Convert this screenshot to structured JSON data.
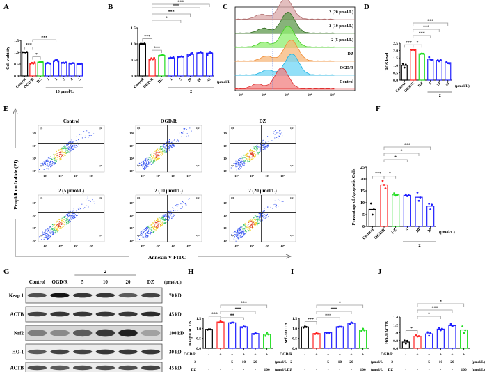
{
  "figure": {
    "panel_labels": [
      "A",
      "B",
      "C",
      "D",
      "E",
      "F",
      "G",
      "H",
      "I",
      "J"
    ]
  },
  "chart_data": [
    {
      "id": "A",
      "type": "bar",
      "ylabel": "Cell viability",
      "ylim": [
        0,
        1.5
      ],
      "yticks": [
        "0.0",
        "0.5",
        "1.0",
        "1.5"
      ],
      "categories": [
        "Control",
        "OGD/R",
        "DZ",
        "1",
        "2",
        "3",
        "4",
        "5"
      ],
      "values": [
        1.0,
        0.53,
        0.58,
        0.53,
        0.64,
        0.55,
        0.53,
        0.5
      ],
      "points": [
        [
          1.0,
          1.0,
          0.99,
          1.01
        ],
        [
          0.5,
          0.55,
          0.52,
          0.57
        ],
        [
          0.57,
          0.58,
          0.6,
          0.59
        ],
        [
          0.53,
          0.55,
          0.54,
          0.52
        ],
        [
          0.62,
          0.66,
          0.68,
          0.61
        ],
        [
          0.55,
          0.56,
          0.54,
          0.57
        ],
        [
          0.53,
          0.52,
          0.54,
          0.54
        ],
        [
          0.5,
          0.51,
          0.5,
          0.52
        ]
      ],
      "colors": [
        "#000000",
        "#ff2020",
        "#22dd22",
        "#2020ff",
        "#2020ff",
        "#2020ff",
        "#2020ff",
        "#2020ff"
      ],
      "group_label": "10 μmol/L",
      "group_start": 3,
      "group_end": 7,
      "unit_label": "",
      "significance": [
        {
          "from": 0,
          "to": 1,
          "label": "***"
        },
        {
          "from": 1,
          "to": 2,
          "label": "*"
        },
        {
          "from": 1,
          "to": 4,
          "label": "***"
        }
      ]
    },
    {
      "id": "B",
      "type": "bar",
      "ylabel": "",
      "ylim": [
        0,
        1.5
      ],
      "yticks": [
        "0.0",
        "0.5",
        "1.0",
        "1.5"
      ],
      "categories": [
        "Control",
        "OGD/R",
        "DZ",
        "1",
        "5",
        "10",
        "20",
        "50"
      ],
      "values": [
        1.0,
        0.53,
        0.64,
        0.56,
        0.6,
        0.67,
        0.72,
        0.71
      ],
      "points": [
        [
          1.0,
          1.0,
          0.99,
          1.01
        ],
        [
          0.51,
          0.55,
          0.52,
          0.56
        ],
        [
          0.63,
          0.64,
          0.65,
          0.64
        ],
        [
          0.55,
          0.57,
          0.56,
          0.58
        ],
        [
          0.59,
          0.6,
          0.61,
          0.6
        ],
        [
          0.62,
          0.65,
          0.7,
          0.72
        ],
        [
          0.7,
          0.73,
          0.75,
          0.72
        ],
        [
          0.65,
          0.7,
          0.75,
          0.72
        ]
      ],
      "colors": [
        "#000000",
        "#ff2020",
        "#22dd22",
        "#2020ff",
        "#2020ff",
        "#2020ff",
        "#2020ff",
        "#2020ff"
      ],
      "group_label": "2",
      "group_start": 3,
      "group_end": 7,
      "unit_label": "(μmol/L)",
      "significance": [
        {
          "from": 0,
          "to": 1,
          "label": "***"
        },
        {
          "from": 1,
          "to": 2,
          "label": "***"
        },
        {
          "from": 1,
          "to": 4,
          "label": "*"
        },
        {
          "from": 1,
          "to": 5,
          "label": "***"
        },
        {
          "from": 1,
          "to": 6,
          "label": "***"
        },
        {
          "from": 1,
          "to": 7,
          "label": "***"
        }
      ]
    },
    {
      "id": "C",
      "type": "area",
      "title": "",
      "xticks": [
        "10³",
        "10⁴",
        "10⁵",
        "10⁶",
        "10⁷"
      ],
      "series": [
        {
          "name": "2 (20 μmol/L)",
          "fill": "#d9a8a8",
          "stroke": "#b07070",
          "peak": 0.55
        },
        {
          "name": "2 (10 μmol/L)",
          "fill": "#5f9a4e",
          "stroke": "#2f6a1e",
          "peak": 0.58
        },
        {
          "name": "2 (5 μmol/L)",
          "fill": "#8fef6f",
          "stroke": "#44cc22",
          "peak": 0.58
        },
        {
          "name": "DZ",
          "fill": "#f7b77a",
          "stroke": "#f08a30",
          "peak": 0.62
        },
        {
          "name": "OGD/R",
          "fill": "#6fd6f5",
          "stroke": "#1ab0e0",
          "peak": 0.63
        },
        {
          "name": "Control",
          "fill": "#f28080",
          "stroke": "#e03030",
          "peak": 0.5
        }
      ]
    },
    {
      "id": "D",
      "type": "bar",
      "ylabel": "ROS level",
      "ylim": [
        0,
        2.5
      ],
      "yticks": [
        "0.0",
        "0.5",
        "1.0",
        "1.5",
        "2.0",
        "2.5"
      ],
      "categories": [
        "Control",
        "OGD/R",
        "DZ",
        "5",
        "10",
        "20"
      ],
      "values": [
        1.0,
        2.05,
        1.78,
        1.43,
        1.33,
        1.18
      ],
      "points": [
        [
          1.1,
          0.85,
          1.05
        ],
        [
          2.05,
          2.06,
          2.04
        ],
        [
          1.77,
          1.8,
          1.78
        ],
        [
          1.55,
          1.4,
          1.38
        ],
        [
          1.35,
          1.28,
          1.38
        ],
        [
          1.25,
          1.15,
          1.12
        ]
      ],
      "colors": [
        "#000000",
        "#ff2020",
        "#22dd22",
        "#2020ff",
        "#2020ff",
        "#2020ff"
      ],
      "group_label": "2",
      "group_start": 3,
      "group_end": 5,
      "unit_label": "(μmol/L)",
      "significance": [
        {
          "from": 0,
          "to": 1,
          "label": "***"
        },
        {
          "from": 1,
          "to": 2,
          "label": "*"
        },
        {
          "from": 1,
          "to": 3,
          "label": "***"
        },
        {
          "from": 1,
          "to": 4,
          "label": "***"
        },
        {
          "from": 1,
          "to": 5,
          "label": "***"
        }
      ]
    },
    {
      "id": "F",
      "type": "bar",
      "ylabel": "Percentage of Apoptotic Cells",
      "ylim": [
        0,
        25
      ],
      "yticks": [
        "0",
        "5",
        "10",
        "15",
        "20",
        "25"
      ],
      "categories": [
        "Control",
        "OGD/R",
        "DZ",
        "5",
        "10",
        "20"
      ],
      "values": [
        7.2,
        17.5,
        13.3,
        13.1,
        12.3,
        8.6
      ],
      "points": [
        [
          9.7,
          5,
          7.2
        ],
        [
          19.2,
          17.5,
          16
        ],
        [
          14,
          13,
          13.2
        ],
        [
          13.5,
          12.8,
          13.2
        ],
        [
          14.3,
          10.8,
          12.2
        ],
        [
          9.6,
          7.2,
          9.2
        ]
      ],
      "colors": [
        "#000000",
        "#ff2020",
        "#22dd22",
        "#2020ff",
        "#2020ff",
        "#2020ff"
      ],
      "group_label": "2",
      "group_start": 3,
      "group_end": 5,
      "unit_label": "(μmol/L)",
      "significance": [
        {
          "from": 0,
          "to": 1,
          "label": "***"
        },
        {
          "from": 1,
          "to": 2,
          "label": "*"
        },
        {
          "from": 1,
          "to": 3,
          "label": "*"
        },
        {
          "from": 1,
          "to": 4,
          "label": "*"
        },
        {
          "from": 1,
          "to": 5,
          "label": "***"
        }
      ]
    },
    {
      "id": "H",
      "type": "bar",
      "ylabel": "Keap1/ACTB",
      "ylim": [
        0,
        1.5
      ],
      "yticks": [
        "0.0",
        "0.5",
        "1.0",
        "1.5"
      ],
      "categories": [
        "",
        "",
        "",
        "",
        "",
        ""
      ],
      "values": [
        0.95,
        1.32,
        1.28,
        1.08,
        0.74,
        0.7
      ],
      "points": [
        [
          0.93,
          0.96,
          0.95
        ],
        [
          1.3,
          1.36,
          1.31
        ],
        [
          1.27,
          1.3,
          1.29
        ],
        [
          1.05,
          1.1,
          1.08
        ],
        [
          0.72,
          0.76,
          0.74
        ],
        [
          0.62,
          0.78,
          0.7
        ]
      ],
      "colors": [
        "#000000",
        "#ff2020",
        "#2020ff",
        "#2020ff",
        "#2020ff",
        "#22dd22"
      ],
      "table_rows": [
        {
          "label": "OGD/R",
          "cells": [
            "-",
            "+",
            "+",
            "+",
            "+",
            "+"
          ],
          "unit": ""
        },
        {
          "label": "2",
          "cells": [
            "-",
            "-",
            "5",
            "10",
            "20",
            "-"
          ],
          "unit": "(μmol/L)"
        },
        {
          "label": "DZ",
          "cells": [
            "-",
            "-",
            "-",
            "-",
            "-",
            "100"
          ],
          "unit": "(μmol/L)"
        }
      ],
      "significance": [
        {
          "from": 0,
          "to": 1,
          "label": "***"
        },
        {
          "from": 1,
          "to": 3,
          "label": "**"
        },
        {
          "from": 1,
          "to": 4,
          "label": "***"
        },
        {
          "from": 1,
          "to": 5,
          "label": "***"
        }
      ]
    },
    {
      "id": "I",
      "type": "bar",
      "ylabel": "Nrf2/ACTB",
      "ylim": [
        0,
        1.5
      ],
      "yticks": [
        "0.0",
        "0.5",
        "1.0",
        "1.5"
      ],
      "categories": [
        "",
        "",
        "",
        "",
        "",
        ""
      ],
      "values": [
        1.07,
        0.74,
        0.78,
        1.08,
        1.26,
        0.91
      ],
      "points": [
        [
          1.04,
          1.1,
          1.07
        ],
        [
          0.72,
          0.77,
          0.73
        ],
        [
          0.78,
          0.79,
          0.77
        ],
        [
          1.07,
          1.09,
          1.08
        ],
        [
          1.2,
          1.3,
          1.27
        ],
        [
          0.85,
          0.98,
          0.9
        ]
      ],
      "colors": [
        "#000000",
        "#ff2020",
        "#2020ff",
        "#2020ff",
        "#2020ff",
        "#22dd22"
      ],
      "table_rows": [
        {
          "label": "OGD/R",
          "cells": [
            "-",
            "+",
            "+",
            "+",
            "+",
            "+"
          ],
          "unit": ""
        },
        {
          "label": "2",
          "cells": [
            "-",
            "-",
            "5",
            "10",
            "20",
            "-"
          ],
          "unit": "(μmol/L)"
        },
        {
          "label": "DZ",
          "cells": [
            "-",
            "-",
            "-",
            "-",
            "-",
            "100"
          ],
          "unit": "(μmol/L)"
        }
      ],
      "significance": [
        {
          "from": 0,
          "to": 1,
          "label": "***"
        },
        {
          "from": 1,
          "to": 3,
          "label": "***"
        },
        {
          "from": 1,
          "to": 4,
          "label": "***"
        },
        {
          "from": 1,
          "to": 5,
          "label": "*"
        }
      ]
    },
    {
      "id": "J",
      "type": "bar",
      "ylabel": "HO-1/ACTB",
      "ylim": [
        0.6,
        1.4
      ],
      "yticks": [
        "0.6",
        "0.8",
        "1.0",
        "1.2",
        "1.4"
      ],
      "categories": [
        "",
        "",
        "",
        "",
        "",
        ""
      ],
      "values": [
        0.76,
        0.91,
        0.97,
        1.09,
        1.18,
        1.07
      ],
      "points": [
        [
          0.8,
          0.72,
          0.79
        ],
        [
          0.93,
          0.9,
          0.91
        ],
        [
          1.01,
          0.92,
          0.99
        ],
        [
          1.12,
          1.06,
          1.1
        ],
        [
          1.22,
          1.17,
          1.18
        ],
        [
          1.16,
          0.99,
          1.06
        ]
      ],
      "colors": [
        "#000000",
        "#ff2020",
        "#2020ff",
        "#2020ff",
        "#2020ff",
        "#22dd22"
      ],
      "table_rows": [
        {
          "label": "OGD/R",
          "cells": [
            "-",
            "+",
            "+",
            "+",
            "+",
            "+"
          ],
          "unit": ""
        },
        {
          "label": "2",
          "cells": [
            "-",
            "-",
            "5",
            "10",
            "20",
            "-"
          ],
          "unit": "(μmol/L)"
        },
        {
          "label": "DZ",
          "cells": [
            "-",
            "-",
            "-",
            "-",
            "-",
            "100"
          ],
          "unit": "(μmol/L)"
        }
      ],
      "significance": [
        {
          "from": 0,
          "to": 1,
          "label": "*"
        },
        {
          "from": 1,
          "to": 3,
          "label": "*"
        },
        {
          "from": 1,
          "to": 4,
          "label": "***"
        },
        {
          "from": 1,
          "to": 5,
          "label": "*"
        }
      ]
    }
  ],
  "flow": {
    "ylabel": "Propidium Iodide (PI)",
    "xlabel": "Annexin V-FITC",
    "axis_ticks": [
      "10³",
      "10⁴",
      "10⁵",
      "10⁶"
    ],
    "plots": [
      {
        "title": "Control",
        "q1": "Q1",
        "q2": "Q2",
        "q3": "Q3",
        "q4": "Q4"
      },
      {
        "title": "OGD/R",
        "q1": "Q1",
        "q2": "Q2",
        "q3": "Q3",
        "q4": "Q4"
      },
      {
        "title": "DZ",
        "q1": "Q1",
        "q2": "Q2",
        "q3": "Q3",
        "q4": "Q4"
      },
      {
        "title": "2 (5 μmol/L)",
        "q1": "Q1",
        "q2": "Q2",
        "q3": "Q3",
        "q4": "Q4"
      },
      {
        "title": "2 (10 μmol/L)",
        "q1": "Q1",
        "q2": "Q2",
        "q3": "Q3",
        "q4": "Q4"
      },
      {
        "title": "2 (20 μmol/L)",
        "q1": "Q1",
        "q2": "Q2",
        "q3": "Q3",
        "q4": "Q4"
      }
    ]
  },
  "western": {
    "group_label": "2",
    "unit_label": "(μmol/L)",
    "lanes": [
      "Control",
      "OGD/R",
      "5",
      "10",
      "20",
      "DZ"
    ],
    "rows": [
      {
        "protein": "Keap 1",
        "size": "70 kD",
        "intensity": [
          0.75,
          1.0,
          0.85,
          0.85,
          0.7,
          0.8
        ]
      },
      {
        "protein": "ACTB",
        "size": "45 kD",
        "intensity": [
          0.8,
          0.85,
          0.85,
          0.85,
          0.85,
          0.9
        ]
      },
      {
        "protein": "Nrf2",
        "size": "100 kD",
        "intensity": [
          0.55,
          0.5,
          0.7,
          0.85,
          0.95,
          0.4
        ]
      },
      {
        "protein": "HO-1",
        "size": "30 kD",
        "intensity": [
          0.7,
          0.8,
          0.8,
          0.85,
          0.85,
          0.85
        ]
      },
      {
        "protein": "ACTB",
        "size": "45 kD",
        "intensity": [
          0.75,
          0.7,
          0.75,
          0.75,
          0.75,
          0.8
        ]
      }
    ]
  }
}
